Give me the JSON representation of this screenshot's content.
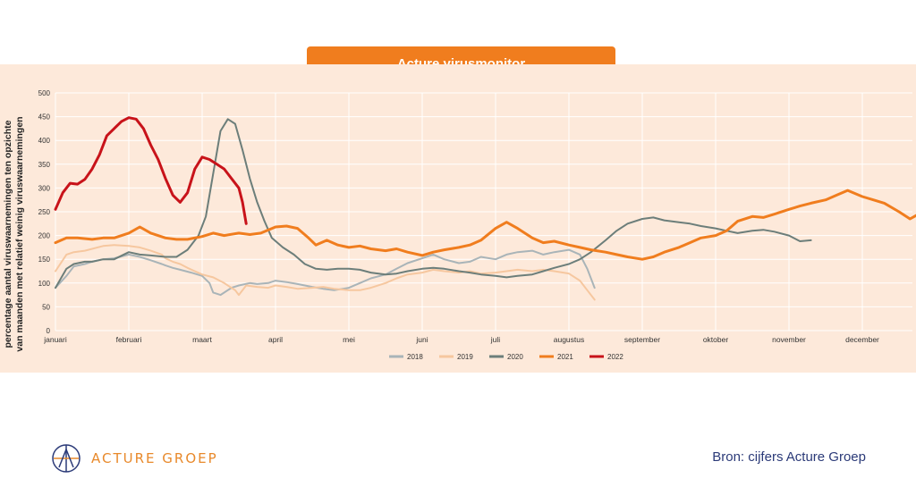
{
  "title": "Acture virusmonitor",
  "source": "Bron: cijfers Acture Groep",
  "logo_text": "ACTURE GROEP",
  "logo_icon": "acture-groep-logo-icon",
  "colors": {
    "title_bg": "#f07d1e",
    "plot_bg": "#fde9da",
    "logo_text": "#e8892b",
    "source_text": "#2b3a78"
  },
  "chart_data": {
    "type": "line",
    "title": "Acture virusmonitor",
    "ylabel_lines": [
      "percentage aantal viruswaarnemingen ten opzichte",
      "van maanden met relatief weinig viruswaarnemingen"
    ],
    "xlabel": "",
    "x": [
      "januari",
      "februari",
      "maart",
      "april",
      "mei",
      "juni",
      "juli",
      "augustus",
      "september",
      "oktober",
      "november",
      "december"
    ],
    "ylim": [
      0,
      500
    ],
    "yticks": [
      0,
      50,
      100,
      150,
      200,
      250,
      300,
      350,
      400,
      450,
      500
    ],
    "grid": true,
    "legend_position": "bottom-center",
    "series": [
      {
        "name": "2018",
        "color": "#a9b4b8",
        "width": 2,
        "points": [
          [
            0.0,
            90
          ],
          [
            0.3,
            115
          ],
          [
            0.5,
            135
          ],
          [
            0.8,
            140
          ],
          [
            1.0,
            145
          ],
          [
            1.3,
            150
          ],
          [
            1.6,
            152
          ],
          [
            2.0,
            160
          ],
          [
            2.3,
            155
          ],
          [
            2.6,
            148
          ],
          [
            2.9,
            140
          ],
          [
            3.0,
            137
          ],
          [
            3.2,
            132
          ],
          [
            3.4,
            128
          ],
          [
            3.7,
            122
          ],
          [
            4.0,
            115
          ],
          [
            4.2,
            100
          ],
          [
            4.3,
            80
          ],
          [
            4.5,
            75
          ],
          [
            4.8,
            90
          ],
          [
            5.0,
            95
          ],
          [
            5.3,
            100
          ],
          [
            5.5,
            98
          ],
          [
            5.8,
            100
          ],
          [
            6.0,
            105
          ],
          [
            6.3,
            102
          ],
          [
            6.6,
            98
          ],
          [
            7.0,
            92
          ],
          [
            7.3,
            88
          ],
          [
            7.6,
            85
          ],
          [
            8.0,
            90
          ],
          [
            8.3,
            100
          ],
          [
            8.6,
            110
          ],
          [
            9.0,
            118
          ],
          [
            9.3,
            130
          ],
          [
            9.6,
            142
          ],
          [
            10.0,
            152
          ],
          [
            10.3,
            160
          ],
          [
            10.6,
            150
          ],
          [
            11.0,
            142
          ],
          [
            11.3,
            145
          ],
          [
            11.6,
            155
          ],
          [
            12.0,
            150
          ],
          [
            12.3,
            160
          ],
          [
            12.6,
            165
          ],
          [
            13.0,
            168
          ],
          [
            13.3,
            160
          ],
          [
            13.6,
            165
          ],
          [
            14.0,
            170
          ],
          [
            14.3,
            160
          ],
          [
            14.5,
            130
          ],
          [
            14.7,
            90
          ]
        ]
      },
      {
        "name": "2019",
        "color": "#f6c79f",
        "width": 2,
        "points": [
          [
            0.0,
            125
          ],
          [
            0.3,
            160
          ],
          [
            0.5,
            165
          ],
          [
            0.8,
            168
          ],
          [
            1.0,
            172
          ],
          [
            1.3,
            178
          ],
          [
            1.6,
            180
          ],
          [
            2.0,
            178
          ],
          [
            2.3,
            175
          ],
          [
            2.6,
            168
          ],
          [
            2.9,
            160
          ],
          [
            3.0,
            152
          ],
          [
            3.2,
            145
          ],
          [
            3.4,
            140
          ],
          [
            3.6,
            132
          ],
          [
            3.8,
            125
          ],
          [
            4.0,
            118
          ],
          [
            4.3,
            112
          ],
          [
            4.6,
            100
          ],
          [
            4.9,
            85
          ],
          [
            5.0,
            75
          ],
          [
            5.2,
            95
          ],
          [
            5.5,
            92
          ],
          [
            5.8,
            90
          ],
          [
            6.0,
            95
          ],
          [
            6.3,
            92
          ],
          [
            6.6,
            88
          ],
          [
            7.0,
            90
          ],
          [
            7.3,
            92
          ],
          [
            7.6,
            88
          ],
          [
            8.0,
            85
          ],
          [
            8.3,
            85
          ],
          [
            8.6,
            90
          ],
          [
            9.0,
            100
          ],
          [
            9.3,
            110
          ],
          [
            9.6,
            118
          ],
          [
            10.0,
            122
          ],
          [
            10.3,
            128
          ],
          [
            10.6,
            125
          ],
          [
            11.0,
            122
          ],
          [
            11.3,
            125
          ],
          [
            11.6,
            120
          ],
          [
            12.0,
            122
          ],
          [
            12.3,
            125
          ],
          [
            12.6,
            128
          ],
          [
            13.0,
            125
          ],
          [
            13.3,
            128
          ],
          [
            13.6,
            125
          ],
          [
            14.0,
            120
          ],
          [
            14.3,
            105
          ],
          [
            14.5,
            85
          ],
          [
            14.7,
            65
          ]
        ]
      },
      {
        "name": "2020",
        "color": "#6c7e7a",
        "width": 2,
        "points": [
          [
            0.0,
            90
          ],
          [
            0.3,
            130
          ],
          [
            0.5,
            140
          ],
          [
            0.8,
            145
          ],
          [
            1.0,
            145
          ],
          [
            1.3,
            150
          ],
          [
            1.6,
            150
          ],
          [
            2.0,
            165
          ],
          [
            2.3,
            160
          ],
          [
            2.6,
            158
          ],
          [
            3.0,
            155
          ],
          [
            3.3,
            155
          ],
          [
            3.6,
            170
          ],
          [
            3.9,
            200
          ],
          [
            4.1,
            240
          ],
          [
            4.3,
            330
          ],
          [
            4.5,
            420
          ],
          [
            4.7,
            445
          ],
          [
            4.9,
            435
          ],
          [
            5.1,
            380
          ],
          [
            5.3,
            320
          ],
          [
            5.5,
            270
          ],
          [
            5.7,
            230
          ],
          [
            5.9,
            195
          ],
          [
            6.2,
            175
          ],
          [
            6.5,
            160
          ],
          [
            6.8,
            140
          ],
          [
            7.1,
            130
          ],
          [
            7.4,
            128
          ],
          [
            7.7,
            130
          ],
          [
            8.0,
            130
          ],
          [
            8.3,
            128
          ],
          [
            8.6,
            122
          ],
          [
            9.0,
            118
          ],
          [
            9.3,
            120
          ],
          [
            9.6,
            125
          ],
          [
            10.0,
            130
          ],
          [
            10.3,
            132
          ],
          [
            10.6,
            130
          ],
          [
            11.0,
            125
          ],
          [
            11.3,
            122
          ],
          [
            11.6,
            118
          ],
          [
            12.0,
            115
          ],
          [
            12.3,
            112
          ],
          [
            12.6,
            115
          ],
          [
            13.0,
            118
          ],
          [
            13.3,
            125
          ],
          [
            13.6,
            132
          ],
          [
            14.0,
            140
          ],
          [
            14.3,
            150
          ],
          [
            14.6,
            165
          ],
          [
            15.0,
            190
          ],
          [
            15.3,
            210
          ],
          [
            15.6,
            225
          ],
          [
            16.0,
            235
          ],
          [
            16.3,
            238
          ],
          [
            16.6,
            232
          ],
          [
            17.0,
            228
          ],
          [
            17.3,
            225
          ],
          [
            17.6,
            220
          ],
          [
            18.0,
            215
          ],
          [
            18.3,
            210
          ],
          [
            18.6,
            205
          ],
          [
            19.0,
            210
          ],
          [
            19.3,
            212
          ],
          [
            19.6,
            208
          ],
          [
            20.0,
            200
          ],
          [
            20.3,
            188
          ],
          [
            20.6,
            190
          ]
        ]
      },
      {
        "name": "2021",
        "color": "#f07d1e",
        "width": 3,
        "points": [
          [
            0.0,
            185
          ],
          [
            0.3,
            195
          ],
          [
            0.6,
            195
          ],
          [
            1.0,
            192
          ],
          [
            1.3,
            195
          ],
          [
            1.6,
            195
          ],
          [
            2.0,
            205
          ],
          [
            2.3,
            218
          ],
          [
            2.6,
            205
          ],
          [
            3.0,
            195
          ],
          [
            3.3,
            192
          ],
          [
            3.6,
            192
          ],
          [
            4.0,
            198
          ],
          [
            4.3,
            205
          ],
          [
            4.6,
            200
          ],
          [
            5.0,
            205
          ],
          [
            5.3,
            202
          ],
          [
            5.6,
            205
          ],
          [
            6.0,
            218
          ],
          [
            6.3,
            220
          ],
          [
            6.6,
            215
          ],
          [
            6.9,
            195
          ],
          [
            7.1,
            180
          ],
          [
            7.4,
            190
          ],
          [
            7.7,
            180
          ],
          [
            8.0,
            175
          ],
          [
            8.3,
            178
          ],
          [
            8.6,
            172
          ],
          [
            9.0,
            168
          ],
          [
            9.3,
            172
          ],
          [
            9.6,
            165
          ],
          [
            10.0,
            158
          ],
          [
            10.3,
            165
          ],
          [
            10.6,
            170
          ],
          [
            11.0,
            175
          ],
          [
            11.3,
            180
          ],
          [
            11.6,
            190
          ],
          [
            12.0,
            215
          ],
          [
            12.3,
            228
          ],
          [
            12.6,
            215
          ],
          [
            13.0,
            195
          ],
          [
            13.3,
            185
          ],
          [
            13.6,
            188
          ],
          [
            14.0,
            180
          ],
          [
            14.3,
            175
          ],
          [
            14.6,
            170
          ],
          [
            15.0,
            165
          ],
          [
            15.3,
            160
          ],
          [
            15.6,
            155
          ],
          [
            16.0,
            150
          ],
          [
            16.3,
            155
          ],
          [
            16.6,
            165
          ],
          [
            17.0,
            175
          ],
          [
            17.3,
            185
          ],
          [
            17.6,
            195
          ],
          [
            18.0,
            200
          ],
          [
            18.3,
            210
          ],
          [
            18.6,
            230
          ],
          [
            19.0,
            240
          ],
          [
            19.3,
            238
          ],
          [
            19.6,
            245
          ],
          [
            20.0,
            255
          ],
          [
            20.3,
            262
          ],
          [
            20.6,
            268
          ],
          [
            21.0,
            275
          ],
          [
            21.3,
            285
          ],
          [
            21.6,
            295
          ],
          [
            22.0,
            282
          ],
          [
            22.3,
            275
          ],
          [
            22.6,
            268
          ],
          [
            23.0,
            250
          ],
          [
            23.3,
            235
          ],
          [
            23.6,
            248
          ]
        ]
      },
      {
        "name": "2022",
        "color": "#c8131a",
        "width": 3,
        "points": [
          [
            0.0,
            255
          ],
          [
            0.2,
            290
          ],
          [
            0.4,
            310
          ],
          [
            0.6,
            308
          ],
          [
            0.8,
            318
          ],
          [
            1.0,
            340
          ],
          [
            1.2,
            370
          ],
          [
            1.4,
            410
          ],
          [
            1.6,
            425
          ],
          [
            1.8,
            440
          ],
          [
            2.0,
            448
          ],
          [
            2.2,
            445
          ],
          [
            2.4,
            425
          ],
          [
            2.6,
            390
          ],
          [
            2.8,
            360
          ],
          [
            3.0,
            320
          ],
          [
            3.2,
            285
          ],
          [
            3.4,
            270
          ],
          [
            3.6,
            290
          ],
          [
            3.8,
            340
          ],
          [
            4.0,
            365
          ],
          [
            4.2,
            360
          ],
          [
            4.4,
            350
          ],
          [
            4.6,
            340
          ],
          [
            4.8,
            320
          ],
          [
            5.0,
            300
          ],
          [
            5.1,
            270
          ],
          [
            5.2,
            225
          ]
        ]
      }
    ]
  }
}
